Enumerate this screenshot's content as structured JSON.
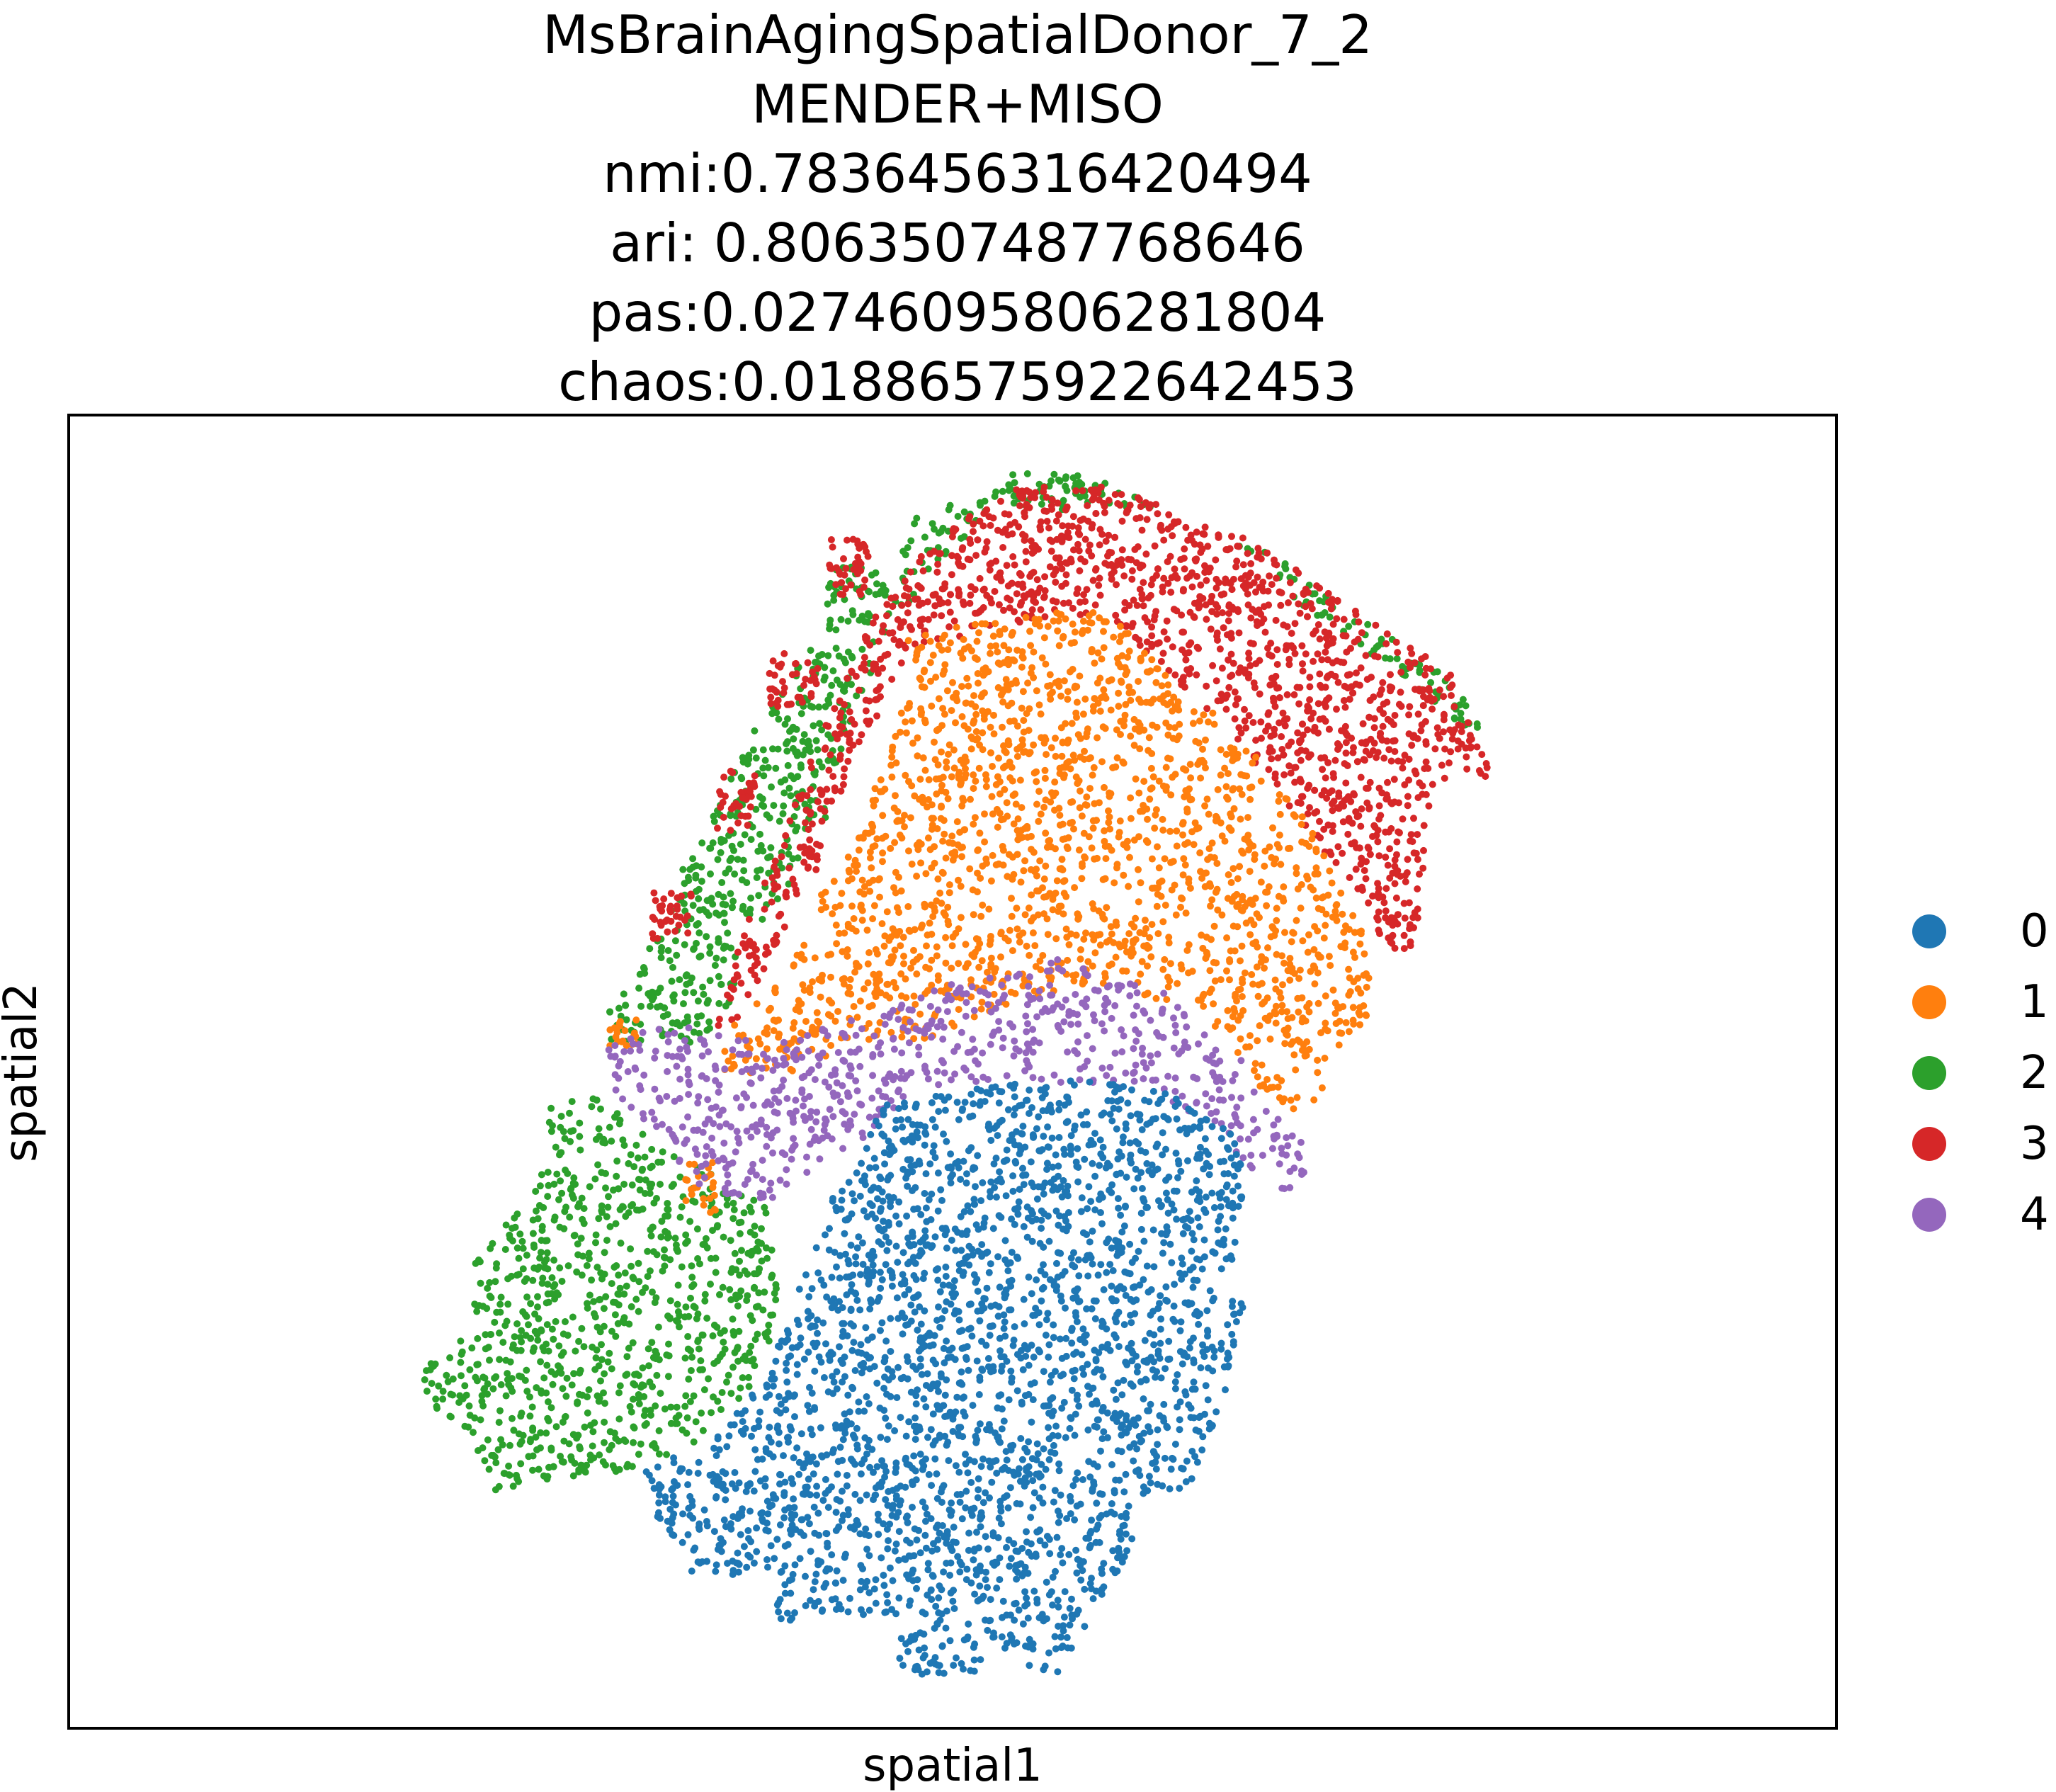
{
  "title_lines": [
    "MsBrainAgingSpatialDonor_7_2",
    "MENDER+MISO",
    "nmi:0.7836456316420494",
    "ari: 0.8063507487768646",
    "pas:0.02746095806281804",
    "chaos:0.01886575922642453"
  ],
  "chart_data": {
    "type": "scatter",
    "title": "MsBrainAgingSpatialDonor_7_2\nMENDER+MISO\nnmi:0.7836456316420494\nari: 0.8063507487768646\npas:0.02746095806281804\nchaos:0.01886575922642453",
    "xlabel": "spatial1",
    "ylabel": "spatial2",
    "ticks": "none",
    "grid": false,
    "legend_placement": "right, outside plot",
    "legend": [
      "0",
      "1",
      "2",
      "3",
      "4"
    ],
    "colors": {
      "0": "#1f77b4",
      "1": "#ff7f0e",
      "2": "#2ca02c",
      "3": "#d62728",
      "4": "#9467bd"
    },
    "note": "Spatial scatter of several thousand cells colored by cluster; axes carry no tick values, so point coordinates cannot be read in data units. Region outlines below approximate the cloud of each cluster on the plot.",
    "series": [
      {
        "name": "0",
        "color": "#1f77b4"
      },
      {
        "name": "1",
        "color": "#ff7f0e"
      },
      {
        "name": "2",
        "color": "#2ca02c"
      },
      {
        "name": "3",
        "color": "#d62728"
      },
      {
        "name": "4",
        "color": "#9467bd"
      }
    ]
  }
}
